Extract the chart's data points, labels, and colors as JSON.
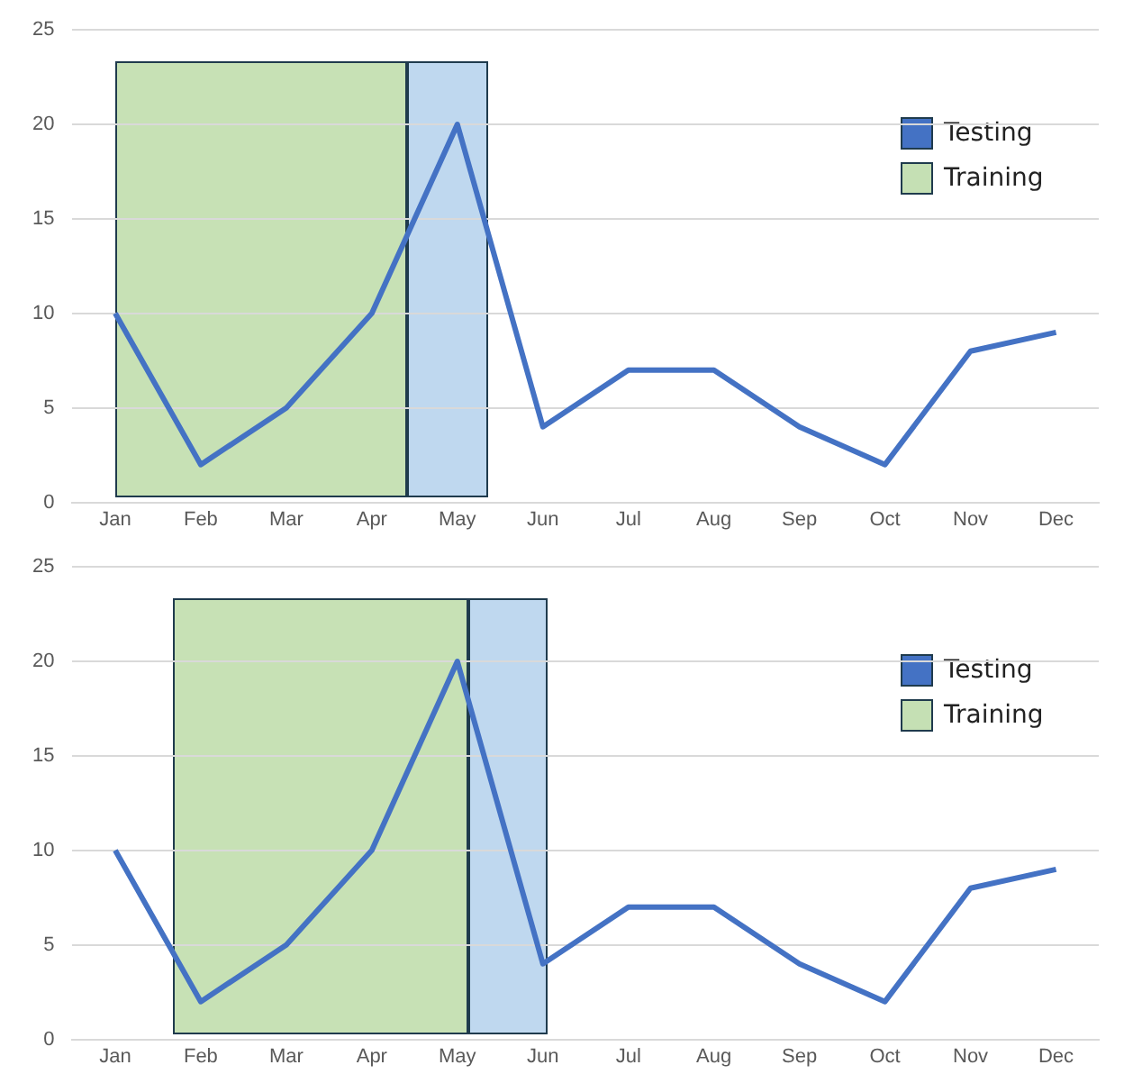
{
  "chart_data": [
    {
      "type": "line",
      "categories": [
        "Jan",
        "Feb",
        "Mar",
        "Apr",
        "May",
        "Jun",
        "Jul",
        "Aug",
        "Sep",
        "Oct",
        "Nov",
        "Dec"
      ],
      "series": [
        {
          "color": "#4472c4",
          "values": [
            10,
            2,
            5,
            10,
            20,
            4,
            7,
            7,
            4,
            2,
            8,
            9
          ]
        }
      ],
      "ylim": [
        0,
        25
      ],
      "yticks": [
        0,
        5,
        10,
        15,
        20,
        25
      ],
      "grid": "y",
      "marker": "none",
      "line_style": "solid",
      "annotations": [
        "Testing",
        "Training"
      ]
    },
    {
      "type": "line",
      "categories": [
        "Jan",
        "Feb",
        "Mar",
        "Apr",
        "May",
        "Jun",
        "Jul",
        "Aug",
        "Sep",
        "Oct",
        "Nov",
        "Dec"
      ],
      "series": [
        {
          "color": "#4472c4",
          "values": [
            10,
            2,
            5,
            10,
            20,
            4,
            7,
            7,
            4,
            2,
            8,
            9
          ]
        }
      ],
      "ylim": [
        0,
        25
      ],
      "yticks": [
        0,
        5,
        10,
        15,
        20,
        25
      ],
      "grid": "y",
      "marker": "none",
      "line_style": "solid",
      "annotations": [
        "Testing",
        "Training"
      ]
    }
  ]
}
